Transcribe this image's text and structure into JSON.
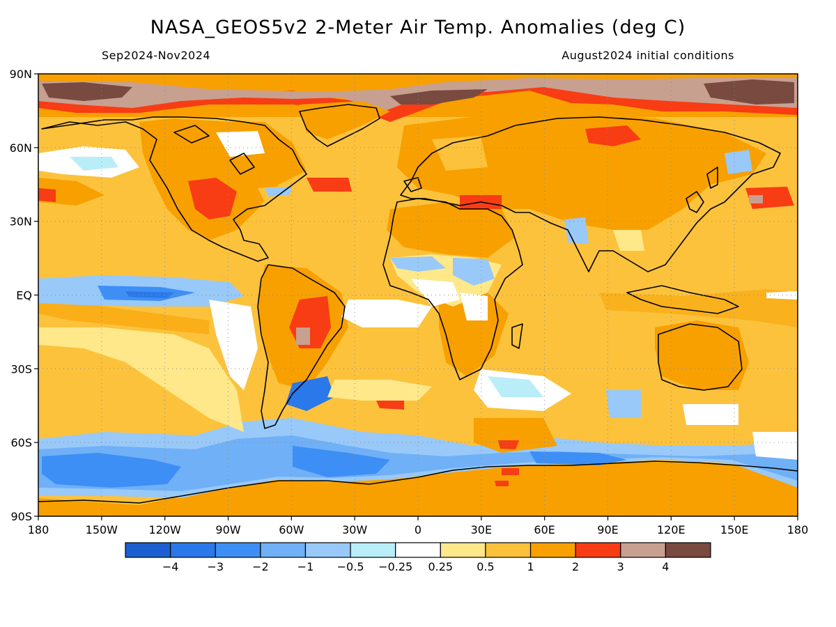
{
  "title": "NASA_GEOS5v2 2-Meter Air Temp. Anomalies (deg C)",
  "period": "Sep2024-Nov2024",
  "initial_conditions": "August2024 initial conditions",
  "lat_ticks": [
    {
      "lat": 90,
      "label": "90N"
    },
    {
      "lat": 60,
      "label": "60N"
    },
    {
      "lat": 30,
      "label": "30N"
    },
    {
      "lat": 0,
      "label": "EQ"
    },
    {
      "lat": -30,
      "label": "30S"
    },
    {
      "lat": -60,
      "label": "60S"
    },
    {
      "lat": -90,
      "label": "90S"
    }
  ],
  "lon_ticks": [
    {
      "lon": -180,
      "label": "180"
    },
    {
      "lon": -150,
      "label": "150W"
    },
    {
      "lon": -120,
      "label": "120W"
    },
    {
      "lon": -90,
      "label": "90W"
    },
    {
      "lon": -60,
      "label": "60W"
    },
    {
      "lon": -30,
      "label": "30W"
    },
    {
      "lon": 0,
      "label": "0"
    },
    {
      "lon": 30,
      "label": "30E"
    },
    {
      "lon": 60,
      "label": "60E"
    },
    {
      "lon": 90,
      "label": "90E"
    },
    {
      "lon": 120,
      "label": "120E"
    },
    {
      "lon": 150,
      "label": "150E"
    },
    {
      "lon": 180,
      "label": "180"
    }
  ],
  "colorbar": {
    "colors": [
      "#1c5fd0",
      "#2a78ea",
      "#3d8ff5",
      "#6fb0f7",
      "#98c9f9",
      "#b9eef9",
      "#ffffff",
      "#ffe88a",
      "#fcc23c",
      "#f8a000",
      "#f83c14",
      "#c8a090",
      "#784a40"
    ],
    "labels": [
      "−4",
      "−3",
      "−2",
      "−1",
      "−0.5",
      "−0.25",
      "0.25",
      "0.5",
      "1",
      "2",
      "3",
      "4"
    ]
  }
}
